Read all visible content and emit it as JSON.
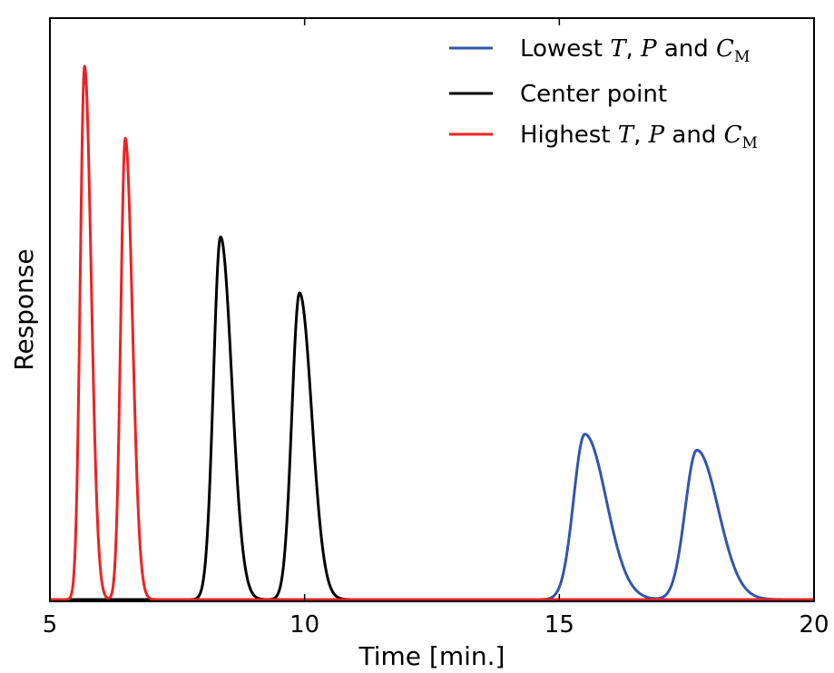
{
  "chart_data": {
    "type": "line",
    "xlabel": "Time [min.]",
    "ylabel": "Response",
    "xlim": [
      5,
      20
    ],
    "ylim": [
      0,
      1.05
    ],
    "xticks": [
      5,
      10,
      15,
      20
    ],
    "yticks_shown": false,
    "grid": false,
    "legend_position": "top-right",
    "series": [
      {
        "name": "Lowest T, P and C_M",
        "legend_parts": {
          "prefix": "Lowest ",
          "var1": "T",
          "sep1": ", ",
          "var2": "P",
          "mid": " and ",
          "var3": "C",
          "sub": "M"
        },
        "color": "#3355aa",
        "peaks": [
          {
            "time": 15.5,
            "height": 0.31,
            "sigma_left": 0.22,
            "sigma_right": 0.42
          },
          {
            "time": 17.7,
            "height": 0.28,
            "sigma_left": 0.23,
            "sigma_right": 0.42
          }
        ]
      },
      {
        "name": "Center point",
        "legend_parts": {
          "prefix": "Center point"
        },
        "color": "#000000",
        "peaks": [
          {
            "time": 8.35,
            "height": 0.68,
            "sigma_left": 0.14,
            "sigma_right": 0.22
          },
          {
            "time": 9.9,
            "height": 0.575,
            "sigma_left": 0.15,
            "sigma_right": 0.24
          }
        ]
      },
      {
        "name": "Highest T, P and C_M",
        "legend_parts": {
          "prefix": "Highest ",
          "var1": "T",
          "sep1": ", ",
          "var2": "P",
          "mid": " and ",
          "var3": "C",
          "sub": "M"
        },
        "color": "#ee2222",
        "peaks": [
          {
            "time": 5.68,
            "height": 1.0,
            "sigma_left": 0.085,
            "sigma_right": 0.13
          },
          {
            "time": 6.48,
            "height": 0.865,
            "sigma_left": 0.09,
            "sigma_right": 0.14
          }
        ]
      }
    ]
  }
}
